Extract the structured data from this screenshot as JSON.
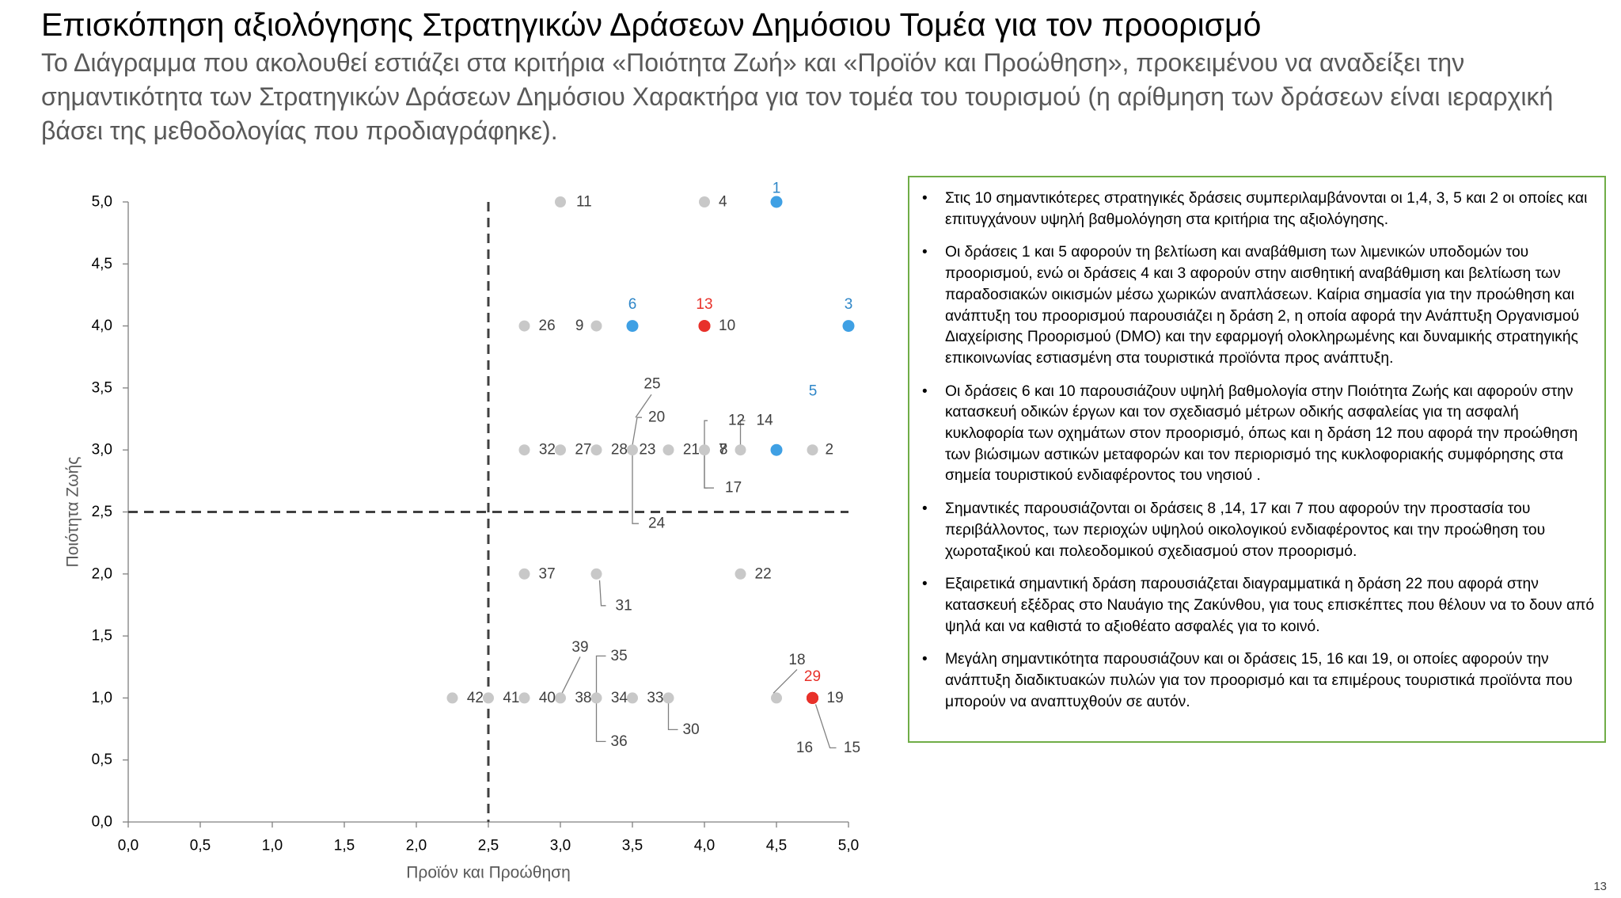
{
  "header": {
    "title": "Επισκόπηση αξιολόγησης Στρατηγικών Δράσεων Δημόσιου Τομέα για τον προορισμό",
    "subtitle": "Το Διάγραμμα που ακολουθεί εστιάζει στα κριτήρια «Ποιότητα Ζωή» και «Προϊόν και Προώθηση», προκειμένου να αναδείξει την σημαντικότητα των Στρατηγικών Δράσεων Δημόσιου Χαρακτήρα για τον τομέα του τουρισμού (η αρίθμηση των δράσεων είναι ιεραρχική βάσει της μεθοδολογίας που προδιαγράφηκε)."
  },
  "chart_data": {
    "type": "scatter",
    "xlabel": "Προϊόν και Προώθηση",
    "ylabel": "Ποιότητα Ζωής",
    "xlim": [
      0,
      5
    ],
    "ylim": [
      0,
      5
    ],
    "x_ticks": [
      "0,0",
      "0,5",
      "1,0",
      "1,5",
      "2,0",
      "2,5",
      "3,0",
      "3,5",
      "4,0",
      "4,5",
      "5,0"
    ],
    "y_ticks": [
      "0,0",
      "0,5",
      "1,0",
      "1,5",
      "2,0",
      "2,5",
      "3,0",
      "3,5",
      "4,0",
      "4,5",
      "5,0"
    ],
    "reference_lines": {
      "x": 2.5,
      "y": 2.5,
      "style": "dashed"
    },
    "grid": false,
    "colors": {
      "grey": "#c8c8c8",
      "blue": "#3fa0e4",
      "red": "#e8312a",
      "label_grey": "#404040",
      "label_blue": "#2e86c8",
      "label_red": "#e8312a"
    },
    "points": [
      {
        "label": "1",
        "x": 4.5,
        "y": 5.0,
        "color": "blue"
      },
      {
        "label": "2",
        "x": 4.75,
        "y": 3.0,
        "color": "grey"
      },
      {
        "label": "3",
        "x": 5.0,
        "y": 4.0,
        "color": "blue"
      },
      {
        "label": "4",
        "x": 4.0,
        "y": 5.0,
        "color": "grey"
      },
      {
        "label": "5",
        "x": 4.5,
        "y": 3.0,
        "color": "blue"
      },
      {
        "label": "6",
        "x": 3.5,
        "y": 4.0,
        "color": "blue"
      },
      {
        "label": "7",
        "x": 4.0,
        "y": 3.0,
        "color": "grey"
      },
      {
        "label": "8",
        "x": 4.25,
        "y": 3.0,
        "color": "grey"
      },
      {
        "label": "9",
        "x": 3.25,
        "y": 4.0,
        "color": "grey"
      },
      {
        "label": "10",
        "x": 4.0,
        "y": 4.0,
        "color": "red"
      },
      {
        "label": "11",
        "x": 3.0,
        "y": 5.0,
        "color": "grey"
      },
      {
        "label": "12",
        "x": 4.0,
        "y": 3.0,
        "color": "grey"
      },
      {
        "label": "13",
        "x": 4.0,
        "y": 4.0,
        "color": "red"
      },
      {
        "label": "14",
        "x": 4.25,
        "y": 3.0,
        "color": "grey"
      },
      {
        "label": "15",
        "x": 4.75,
        "y": 1.0,
        "color": "red"
      },
      {
        "label": "16",
        "x": 4.75,
        "y": 1.0,
        "color": "red"
      },
      {
        "label": "17",
        "x": 4.0,
        "y": 3.0,
        "color": "grey"
      },
      {
        "label": "18",
        "x": 4.5,
        "y": 1.0,
        "color": "grey"
      },
      {
        "label": "19",
        "x": 4.75,
        "y": 1.0,
        "color": "red"
      },
      {
        "label": "20",
        "x": 3.5,
        "y": 3.0,
        "color": "grey"
      },
      {
        "label": "21",
        "x": 4.0,
        "y": 3.0,
        "color": "grey"
      },
      {
        "label": "22",
        "x": 4.25,
        "y": 2.0,
        "color": "grey"
      },
      {
        "label": "23",
        "x": 3.75,
        "y": 3.0,
        "color": "grey"
      },
      {
        "label": "24",
        "x": 3.5,
        "y": 3.0,
        "color": "grey"
      },
      {
        "label": "25",
        "x": 3.5,
        "y": 3.0,
        "color": "grey"
      },
      {
        "label": "26",
        "x": 2.75,
        "y": 4.0,
        "color": "grey"
      },
      {
        "label": "27",
        "x": 3.25,
        "y": 3.0,
        "color": "grey"
      },
      {
        "label": "28",
        "x": 3.5,
        "y": 3.0,
        "color": "grey"
      },
      {
        "label": "29",
        "x": 4.75,
        "y": 1.0,
        "color": "red"
      },
      {
        "label": "30",
        "x": 3.75,
        "y": 1.0,
        "color": "grey"
      },
      {
        "label": "31",
        "x": 3.25,
        "y": 2.0,
        "color": "grey"
      },
      {
        "label": "32",
        "x": 3.0,
        "y": 3.0,
        "color": "grey"
      },
      {
        "label": "33",
        "x": 3.75,
        "y": 1.0,
        "color": "grey"
      },
      {
        "label": "34",
        "x": 3.5,
        "y": 1.0,
        "color": "grey"
      },
      {
        "label": "35",
        "x": 3.25,
        "y": 1.0,
        "color": "grey"
      },
      {
        "label": "36",
        "x": 3.25,
        "y": 1.0,
        "color": "grey"
      },
      {
        "label": "37",
        "x": 2.75,
        "y": 2.0,
        "color": "grey"
      },
      {
        "label": "38",
        "x": 3.25,
        "y": 1.0,
        "color": "grey"
      },
      {
        "label": "39",
        "x": 3.0,
        "y": 1.0,
        "color": "grey"
      },
      {
        "label": "40",
        "x": 3.0,
        "y": 1.0,
        "color": "grey"
      },
      {
        "label": "41",
        "x": 2.75,
        "y": 1.0,
        "color": "grey"
      },
      {
        "label": "42",
        "x": 2.5,
        "y": 1.0,
        "color": "grey"
      },
      {
        "label": "",
        "x": 2.25,
        "y": 1.0,
        "color": "grey"
      },
      {
        "label": "",
        "x": 3.0,
        "y": 3.0,
        "color": "grey"
      },
      {
        "label": "",
        "x": 2.75,
        "y": 3.0,
        "color": "grey"
      }
    ]
  },
  "notes": {
    "bullets": [
      "Στις 10 σημαντικότερες στρατηγικές δράσεις συμπεριλαμβάνονται οι 1,4, 3, 5 και 2 οι οποίες και επιτυγχάνουν υψηλή βαθμολόγηση στα κριτήρια της αξιολόγησης.",
      "Οι δράσεις 1 και 5 αφορούν τη βελτίωση και αναβάθμιση των λιμενικών υποδομών του προορισμού, ενώ οι δράσεις 4 και 3 αφορούν στην αισθητική αναβάθμιση και βελτίωση των παραδοσιακών οικισμών μέσω χωρικών αναπλάσεων.  Καίρια σημασία για την προώθηση και ανάπτυξη του προορισμού παρουσιάζει η δράση 2, η οποία αφορά την Ανάπτυξη Οργανισμού Διαχείρισης Προορισμού (DMO) και την εφαρμογή ολοκληρωμένης και δυναμικής στρατηγικής επικοινωνίας εστιασμένη στα τουριστικά προϊόντα προς ανάπτυξη.",
      "Οι δράσεις 6 και 10 παρουσιάζουν υψηλή βαθμολογία στην Ποιότητα Ζωής και αφορούν στην κατασκευή οδικών έργων και τον σχεδιασμό μέτρων οδικής ασφαλείας για τη ασφαλή κυκλοφορία των οχημάτων στον προορισμό, όπως και η δράση 12 που αφορά την προώθηση των βιώσιμων αστικών μεταφορών και τον περιορισμό της κυκλοφοριακής συμφόρησης στα σημεία τουριστικού ενδιαφέροντος του νησιού .",
      "Σημαντικές παρουσιάζονται οι δράσεις  8 ,14, 17 και 7 που αφορούν την προστασία του περιβάλλοντος, των περιοχών υψηλού οικολογικού ενδιαφέροντος και  την προώθηση του χωροταξικού και πολεοδομικού σχεδιασμού στον προορισμό.",
      "Εξαιρετικά σημαντική δράση παρουσιάζεται διαγραμματικά η δράση 22 που αφορά στην κατασκευή εξέδρας  στο Ναυάγιο της Ζακύνθου, για τους επισκέπτες που θέλουν να το δουν από ψηλά και να καθιστά το αξιοθέατο ασφαλές για το κοινό.",
      "Μεγάλη σημαντικότητα παρουσιάζουν και οι δράσεις 15, 16 και  19, οι οποίες αφορούν την ανάπτυξη διαδικτυακών πυλών για τον προορισμό και τα επιμέρους τουριστικά προϊόντα που μπορούν να αναπτυχθούν σε αυτόν."
    ]
  },
  "footer": {
    "page_number": "13"
  }
}
